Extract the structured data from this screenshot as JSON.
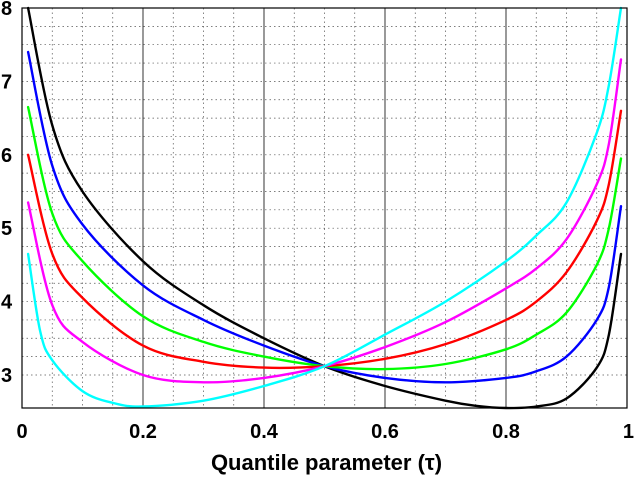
{
  "chart_data": {
    "type": "line",
    "title": "",
    "xlabel": "Quantile parameter (τ)",
    "ylabel": "",
    "xlim": [
      0,
      1
    ],
    "ylim": [
      2.55,
      8
    ],
    "xticks": [
      "0",
      "0.2",
      "0.4",
      "0.6",
      "0.8",
      "1"
    ],
    "yticks": [
      "3",
      "4",
      "5",
      "6",
      "7",
      "8"
    ],
    "grid": "dotted",
    "legend": "none",
    "series": [
      {
        "color": "#000000",
        "x": [
          0.01,
          0.05,
          0.1,
          0.2,
          0.3,
          0.4,
          0.5,
          0.6,
          0.7,
          0.75,
          0.8,
          0.85,
          0.9,
          0.95,
          0.97,
          0.99
        ],
        "y": [
          8.0,
          6.4,
          5.5,
          4.55,
          3.95,
          3.5,
          3.12,
          2.85,
          2.65,
          2.58,
          2.55,
          2.57,
          2.68,
          3.1,
          3.55,
          4.65
        ]
      },
      {
        "color": "#0000ff",
        "x": [
          0.01,
          0.05,
          0.1,
          0.2,
          0.3,
          0.4,
          0.5,
          0.6,
          0.7,
          0.8,
          0.85,
          0.9,
          0.95,
          0.97,
          0.99
        ],
        "y": [
          7.4,
          5.85,
          5.05,
          4.22,
          3.75,
          3.4,
          3.12,
          2.96,
          2.9,
          2.96,
          3.05,
          3.25,
          3.75,
          4.2,
          5.3
        ]
      },
      {
        "color": "#00ff00",
        "x": [
          0.01,
          0.05,
          0.1,
          0.2,
          0.3,
          0.4,
          0.5,
          0.6,
          0.7,
          0.8,
          0.85,
          0.9,
          0.95,
          0.97,
          0.99
        ],
        "y": [
          6.65,
          5.2,
          4.55,
          3.8,
          3.45,
          3.25,
          3.12,
          3.08,
          3.15,
          3.35,
          3.55,
          3.85,
          4.5,
          5.0,
          5.95
        ]
      },
      {
        "color": "#ff0000",
        "x": [
          0.01,
          0.05,
          0.1,
          0.2,
          0.3,
          0.4,
          0.5,
          0.6,
          0.7,
          0.8,
          0.85,
          0.9,
          0.95,
          0.97,
          0.99
        ],
        "y": [
          6.0,
          4.65,
          4.05,
          3.4,
          3.18,
          3.1,
          3.12,
          3.22,
          3.42,
          3.75,
          4.0,
          4.4,
          5.1,
          5.6,
          6.6
        ]
      },
      {
        "color": "#ff00ff",
        "x": [
          0.01,
          0.05,
          0.1,
          0.2,
          0.3,
          0.4,
          0.5,
          0.6,
          0.7,
          0.8,
          0.85,
          0.9,
          0.95,
          0.97,
          0.99
        ],
        "y": [
          5.35,
          3.95,
          3.45,
          3.0,
          2.9,
          2.96,
          3.12,
          3.38,
          3.72,
          4.18,
          4.45,
          4.85,
          5.6,
          6.15,
          7.3
        ]
      },
      {
        "color": "#00ffff",
        "x": [
          0.01,
          0.03,
          0.05,
          0.1,
          0.15,
          0.2,
          0.3,
          0.4,
          0.5,
          0.6,
          0.7,
          0.8,
          0.85,
          0.9,
          0.95,
          0.97,
          0.99
        ],
        "y": [
          4.65,
          3.6,
          3.2,
          2.78,
          2.62,
          2.57,
          2.65,
          2.85,
          3.12,
          3.55,
          4.0,
          4.55,
          4.9,
          5.35,
          6.3,
          6.95,
          8.0
        ]
      }
    ]
  }
}
